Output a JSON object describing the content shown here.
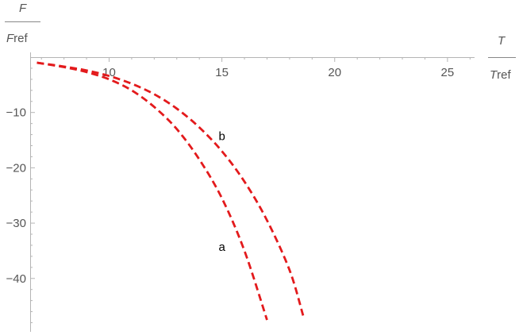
{
  "chart_data": {
    "type": "line",
    "xlabel": {
      "numerator": "T",
      "denominator": "T",
      "denominator_sub": "ref"
    },
    "ylabel": {
      "numerator": "F",
      "denominator": "F",
      "denominator_sub": "ref"
    },
    "xlim": [
      6.5,
      26.2
    ],
    "ylim": [
      -48.5,
      0
    ],
    "xticks": [
      10,
      15,
      20,
      25
    ],
    "yticks": [
      -10,
      -20,
      -30,
      -40
    ],
    "xtick_labels": [
      "10",
      "15",
      "20",
      "25"
    ],
    "ytick_labels": [
      "−10",
      "−20",
      "−30",
      "−40"
    ],
    "grid": false,
    "series": [
      {
        "name": "a",
        "color": "#e31a1c",
        "style": "dashed",
        "x": [
          6.8,
          8.0,
          9.0,
          10.0,
          11.0,
          12.0,
          13.0,
          14.0,
          15.0,
          16.0,
          17.0
        ],
        "y": [
          -1.0,
          -1.8,
          -2.7,
          -4.0,
          -6.0,
          -9.0,
          -13.0,
          -18.5,
          -25.5,
          -35.0,
          -47.5
        ]
      },
      {
        "name": "b",
        "color": "#e31a1c",
        "style": "dashed",
        "x": [
          6.8,
          8.0,
          9.0,
          10.0,
          11.0,
          12.0,
          13.0,
          14.0,
          15.0,
          16.0,
          17.0,
          18.0,
          18.6
        ],
        "y": [
          -1.0,
          -1.7,
          -2.4,
          -3.4,
          -4.8,
          -6.7,
          -9.3,
          -12.7,
          -17.0,
          -22.5,
          -29.5,
          -38.5,
          -46.7
        ]
      }
    ],
    "annotations": [
      {
        "text": "a",
        "x": 15.0,
        "y": -35.0
      },
      {
        "text": "b",
        "x": 15.0,
        "y": -15.0
      }
    ]
  }
}
